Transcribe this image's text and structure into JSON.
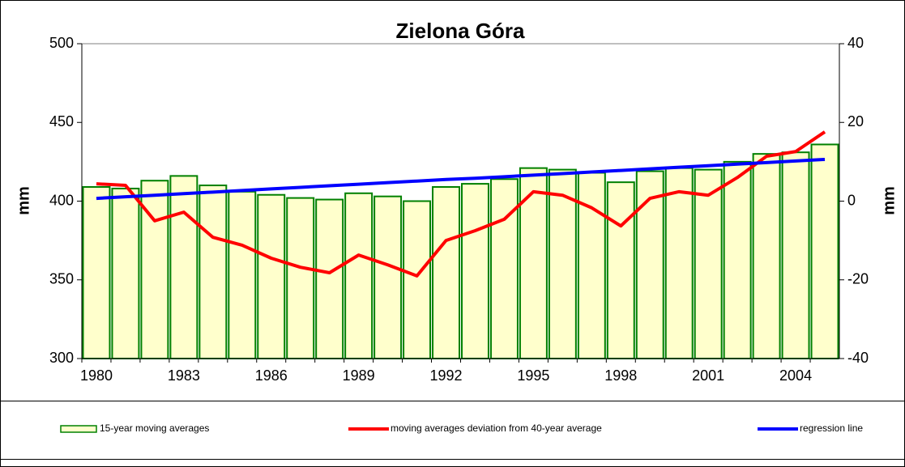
{
  "chart_data": {
    "type": "combo",
    "title": "Zielona Góra",
    "y_label": "mm",
    "y2_label": "mm",
    "categories": [
      "1980",
      null,
      null,
      "1983",
      null,
      null,
      "1986",
      null,
      null,
      "1989",
      null,
      null,
      "1992",
      null,
      null,
      "1995",
      null,
      null,
      "1998",
      null,
      null,
      "2001",
      null,
      null,
      "2004",
      null
    ],
    "ylim": [
      300,
      500
    ],
    "yticks": [
      300,
      350,
      400,
      450,
      500
    ],
    "y2lim": [
      -40,
      40
    ],
    "y2ticks": [
      -40,
      -20,
      0,
      20,
      40
    ],
    "series": [
      {
        "name": "15-year moving averages",
        "type": "bar",
        "color": "#ffffcc",
        "edge_color": "#008000",
        "axis": "y",
        "values": [
          409,
          408,
          413,
          416,
          410,
          406,
          404,
          402,
          401,
          405,
          403,
          400,
          409,
          411,
          414,
          421,
          420,
          418,
          412,
          419,
          421,
          420,
          425,
          430,
          431,
          436
        ]
      },
      {
        "name": "moving averages deviation from 40-year average",
        "type": "line",
        "color": "#ff0000",
        "axis": "y2",
        "values": [
          4.4,
          4,
          -5,
          -2.8,
          -9.2,
          -11.2,
          -14.5,
          -16.8,
          -18.2,
          -13.7,
          -16.2,
          -19,
          -10,
          -7.5,
          -4.6,
          2.4,
          1.5,
          -1.7,
          -6.3,
          0.7,
          2.4,
          1.5,
          6,
          11.4,
          12.6,
          17.6
        ]
      },
      {
        "name": "regression line",
        "type": "line",
        "color": "#0000ff",
        "axis": "y2",
        "values": [
          0.7,
          1.1,
          1.5,
          1.9,
          2.3,
          2.7,
          3.1,
          3.5,
          3.9,
          4.3,
          4.7,
          5.1,
          5.5,
          5.8,
          6.2,
          6.6,
          7.0,
          7.4,
          7.8,
          8.2,
          8.6,
          9.0,
          9.4,
          9.8,
          10.2,
          10.6
        ]
      }
    ]
  }
}
